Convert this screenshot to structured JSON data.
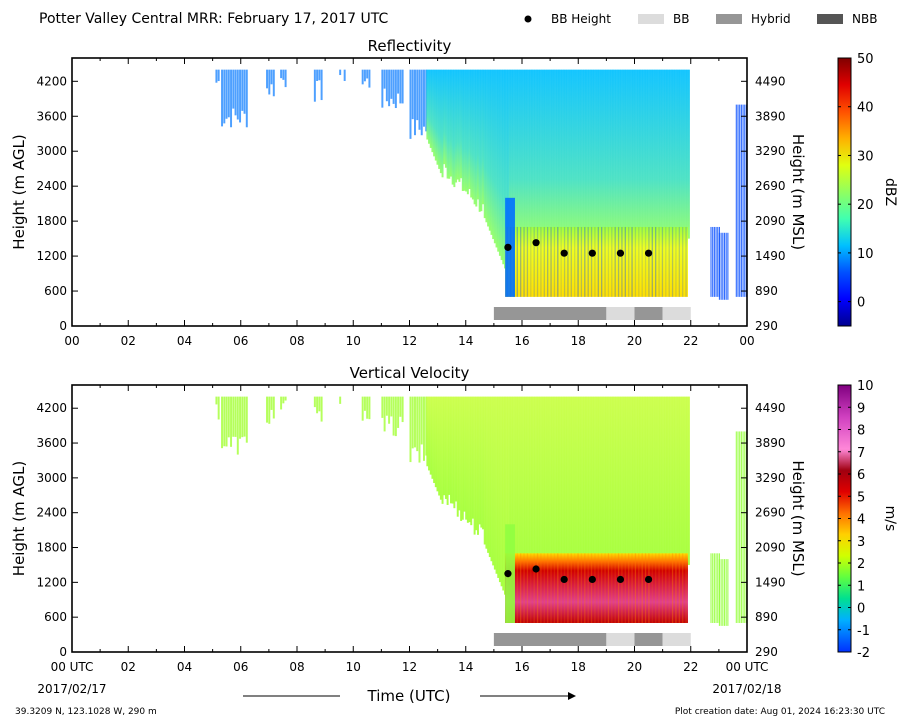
{
  "header": {
    "title": "Potter Valley Central MRR:  February 17, 2017 UTC",
    "legend": [
      {
        "label": "BB Height",
        "kind": "dot",
        "color": "#000000"
      },
      {
        "label": "BB",
        "kind": "swatch",
        "color": "#dcdcdc"
      },
      {
        "label": "Hybrid",
        "kind": "swatch",
        "color": "#969696"
      },
      {
        "label": "NBB",
        "kind": "swatch",
        "color": "#555555"
      }
    ]
  },
  "footer": {
    "location": "39.3209 N, 123.1028 W, 290 m",
    "creation": "Plot creation date: Aug 01, 2024 16:23:30 UTC",
    "xlabel": "Time (UTC)",
    "start_date": "2017/02/17",
    "end_date": "2017/02/18"
  },
  "chart_data": [
    {
      "type": "heatmap",
      "title": "Reflectivity",
      "ylabel": "Height (m AGL)",
      "ylabel_right": "Height (m MSL)",
      "x_ticks": [
        "00",
        "02",
        "04",
        "06",
        "08",
        "10",
        "12",
        "14",
        "16",
        "18",
        "20",
        "22",
        "00"
      ],
      "xlim_hours": [
        0,
        24
      ],
      "ylim": [
        0,
        4600
      ],
      "y_ticks": [
        0,
        600,
        1200,
        1800,
        2400,
        3000,
        3600,
        4200
      ],
      "y_ticks_right": [
        290,
        890,
        1490,
        2090,
        2690,
        3290,
        3890,
        4490
      ],
      "colorbar": {
        "label": "dBZ",
        "range": [
          -5,
          50
        ],
        "ticks": [
          0,
          10,
          20,
          30,
          40,
          50
        ]
      },
      "bb_height": [
        {
          "time": 15.5,
          "height": 1350
        },
        {
          "time": 16.5,
          "height": 1430
        },
        {
          "time": 17.5,
          "height": 1250
        },
        {
          "time": 18.5,
          "height": 1250
        },
        {
          "time": 19.5,
          "height": 1250
        },
        {
          "time": 20.5,
          "height": 1250
        }
      ],
      "bb_type": [
        {
          "start": 15.0,
          "end": 19.0,
          "type": "Hybrid"
        },
        {
          "start": 19.0,
          "end": 20.0,
          "type": "BB"
        },
        {
          "start": 20.0,
          "end": 21.0,
          "type": "Hybrid"
        },
        {
          "start": 21.0,
          "end": 22.0,
          "type": "BB"
        }
      ]
    },
    {
      "type": "heatmap",
      "title": "Vertical Velocity",
      "ylabel": "Height (m AGL)",
      "ylabel_right": "Height (m MSL)",
      "x_ticks": [
        "00 UTC",
        "02",
        "04",
        "06",
        "08",
        "10",
        "12",
        "14",
        "16",
        "18",
        "20",
        "22",
        "00 UTC"
      ],
      "xlim_hours": [
        0,
        24
      ],
      "ylim": [
        0,
        4600
      ],
      "y_ticks": [
        0,
        600,
        1200,
        1800,
        2400,
        3000,
        3600,
        4200
      ],
      "y_ticks_right": [
        290,
        890,
        1490,
        2090,
        2690,
        3290,
        3890,
        4490
      ],
      "colorbar": {
        "label": "m/s",
        "range": [
          -2,
          10
        ],
        "ticks": [
          -2,
          -1,
          0,
          1,
          2,
          3,
          4,
          5,
          6,
          7,
          8,
          9,
          10
        ]
      },
      "bb_height": [
        {
          "time": 15.5,
          "height": 1350
        },
        {
          "time": 16.5,
          "height": 1430
        },
        {
          "time": 17.5,
          "height": 1250
        },
        {
          "time": 18.5,
          "height": 1250
        },
        {
          "time": 19.5,
          "height": 1250
        },
        {
          "time": 20.5,
          "height": 1250
        }
      ],
      "bb_type": [
        {
          "start": 15.0,
          "end": 19.0,
          "type": "Hybrid"
        },
        {
          "start": 19.0,
          "end": 20.0,
          "type": "BB"
        },
        {
          "start": 20.0,
          "end": 21.0,
          "type": "Hybrid"
        },
        {
          "start": 21.0,
          "end": 22.0,
          "type": "BB"
        }
      ]
    }
  ]
}
